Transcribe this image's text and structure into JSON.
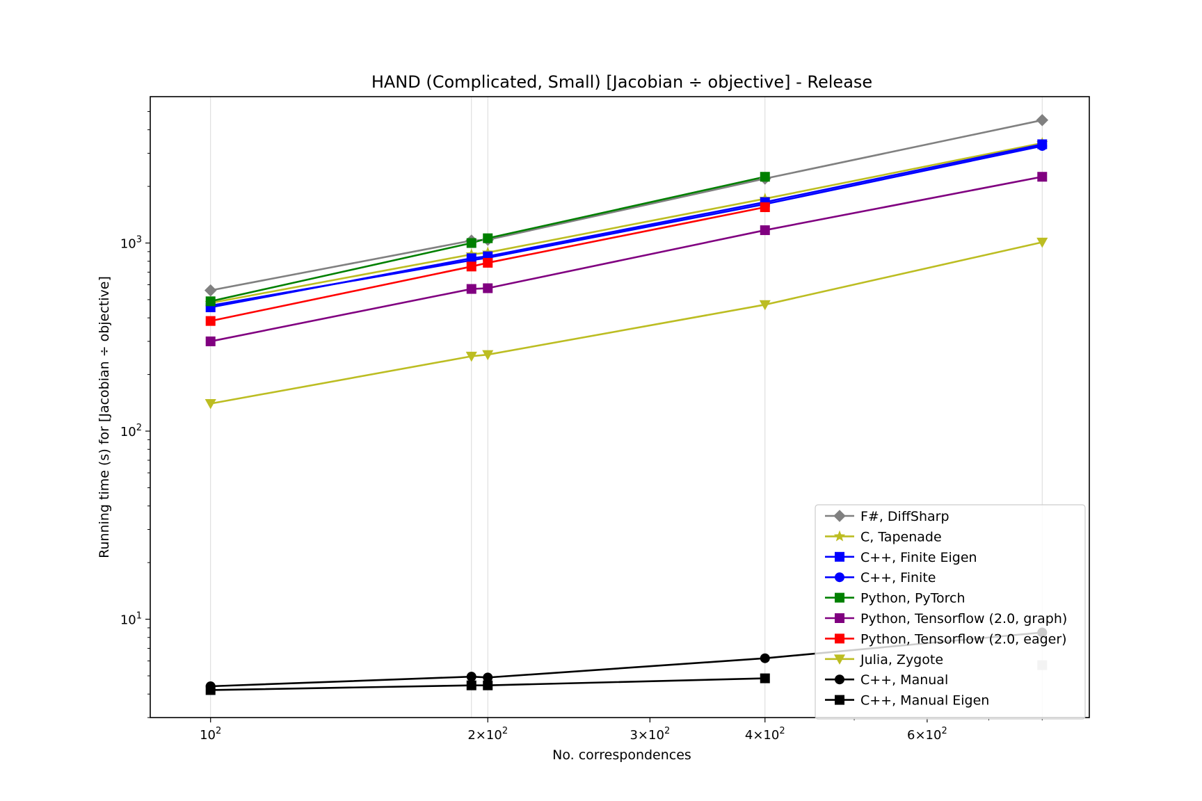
{
  "chart_data": {
    "type": "line",
    "title": "HAND (Complicated, Small) [Jacobian ÷ objective] - Release",
    "xlabel": "No. correspondences",
    "ylabel": "Running time (s) for [Jacobian ÷ objective]",
    "xscale": "log",
    "yscale": "log",
    "xlim": [
      86,
      900
    ],
    "ylim": [
      3,
      6000
    ],
    "x": [
      100,
      192,
      200,
      400,
      800
    ],
    "x_gridlines": [
      100,
      192,
      200,
      400,
      800
    ],
    "x_major_ticks": [
      {
        "value": 100,
        "base": "10",
        "exp": "2",
        "coef": ""
      },
      {
        "value": 200,
        "base": "10",
        "exp": "2",
        "coef": "2×"
      },
      {
        "value": 300,
        "base": "10",
        "exp": "2",
        "coef": "3×"
      },
      {
        "value": 400,
        "base": "10",
        "exp": "2",
        "coef": "4×"
      },
      {
        "value": 600,
        "base": "10",
        "exp": "2",
        "coef": "6×"
      }
    ],
    "x_minor_ticks": [
      500,
      700,
      800
    ],
    "y_major_ticks": [
      {
        "value": 10,
        "base": "10",
        "exp": "1"
      },
      {
        "value": 100,
        "base": "10",
        "exp": "2"
      },
      {
        "value": 1000,
        "base": "10",
        "exp": "3"
      }
    ],
    "y_minor_ticks": [
      3,
      4,
      5,
      6,
      7,
      8,
      9,
      20,
      30,
      40,
      50,
      60,
      70,
      80,
      90,
      200,
      300,
      400,
      500,
      600,
      700,
      800,
      900,
      2000,
      3000,
      4000,
      5000
    ],
    "legend_position": "lower-right",
    "series": [
      {
        "name": "F#, DiffSharp",
        "color": "#808080",
        "marker": "diamond",
        "points": [
          [
            100,
            560
          ],
          [
            192,
            1030
          ],
          [
            200,
            1040
          ],
          [
            400,
            2200
          ],
          [
            800,
            4500
          ]
        ]
      },
      {
        "name": "C, Tapenade",
        "color": "#bcbd22",
        "marker": "star",
        "points": [
          [
            100,
            480
          ],
          [
            192,
            870
          ],
          [
            200,
            890
          ],
          [
            400,
            1720
          ],
          [
            800,
            3400
          ]
        ]
      },
      {
        "name": "C++, Finite Eigen",
        "color": "#0000ff",
        "marker": "square",
        "points": [
          [
            100,
            455
          ],
          [
            192,
            830
          ],
          [
            200,
            850
          ],
          [
            400,
            1650
          ],
          [
            800,
            3350
          ]
        ]
      },
      {
        "name": "C++, Finite",
        "color": "#0000ff",
        "marker": "circle",
        "points": [
          [
            100,
            465
          ],
          [
            192,
            810
          ],
          [
            200,
            835
          ],
          [
            400,
            1610
          ],
          [
            800,
            3280
          ]
        ]
      },
      {
        "name": "Python, PyTorch",
        "color": "#008000",
        "marker": "square",
        "points": [
          [
            100,
            490
          ],
          [
            192,
            1000
          ],
          [
            200,
            1060
          ],
          [
            400,
            2250
          ]
        ]
      },
      {
        "name": "Python, Tensorflow (2.0, graph)",
        "color": "#800080",
        "marker": "square",
        "points": [
          [
            100,
            300
          ],
          [
            192,
            570
          ],
          [
            200,
            575
          ],
          [
            400,
            1170
          ],
          [
            800,
            2250
          ]
        ]
      },
      {
        "name": "Python, Tensorflow (2.0, eager)",
        "color": "#ff0000",
        "marker": "square",
        "points": [
          [
            100,
            385
          ],
          [
            192,
            750
          ],
          [
            200,
            785
          ],
          [
            400,
            1550
          ]
        ]
      },
      {
        "name": "Julia, Zygote",
        "color": "#bcbd22",
        "marker": "triangle-down",
        "points": [
          [
            100,
            140
          ],
          [
            192,
            250
          ],
          [
            200,
            255
          ],
          [
            400,
            470
          ],
          [
            800,
            1010
          ]
        ]
      },
      {
        "name": "C++, Manual",
        "color": "#000000",
        "marker": "circle",
        "points": [
          [
            100,
            4.4
          ],
          [
            192,
            4.95
          ],
          [
            200,
            4.9
          ],
          [
            400,
            6.2
          ],
          [
            800,
            8.5
          ]
        ]
      },
      {
        "name": "C++, Manual Eigen",
        "color": "#000000",
        "marker": "square",
        "points": [
          [
            100,
            4.2
          ],
          [
            192,
            4.45
          ],
          [
            200,
            4.45
          ],
          [
            400,
            4.85
          ]
        ]
      }
    ],
    "overlay_point": {
      "series_name": "C++, Manual Eigen",
      "color": "#c0c0c0",
      "marker": "square",
      "point": [
        800,
        5.7
      ]
    }
  }
}
